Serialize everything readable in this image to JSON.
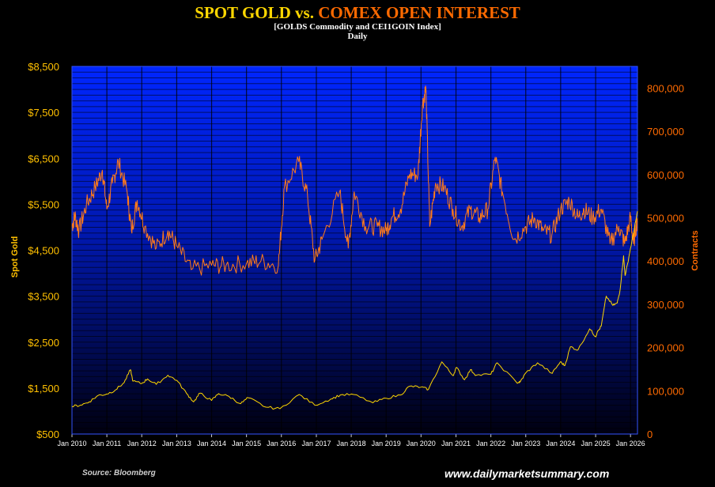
{
  "colors": {
    "background": "#000000",
    "plot_top": "#0026FF",
    "plot_bottom": "#000010",
    "gold_series": "#FFD700",
    "open_interest_series": "#FF7A1A",
    "left_axis_text": "#FFC000",
    "right_axis_text": "#FF6A00"
  },
  "header": {
    "title_part1": "SPOT GOLD",
    "title_vs": "vs.",
    "title_part2": "COMEX OPEN INTEREST",
    "subtitle": "[GOLDS Commodity  and CEI1GOIN Index]",
    "frequency": "Daily"
  },
  "footer": {
    "source": "Source: Bloomberg",
    "website": "www.dailymarketsummary.com"
  },
  "chart_data": {
    "type": "line",
    "grid": true,
    "x_axis": {
      "type": "date",
      "tick_labels": [
        "Jan 2010",
        "Jan 2011",
        "Jan 2012",
        "Jan 2013",
        "Jan 2014",
        "Jan 2015",
        "Jan 2016",
        "Jan 2017",
        "Jan 2018",
        "Jan 2019",
        "Jan 2020",
        "Jan 2021",
        "Jan 2022",
        "Jan 2023",
        "Jan 2024",
        "Jan 2025",
        "Jan 2026"
      ],
      "range": [
        "2010-01-01",
        "2026-03-15"
      ]
    },
    "y_left": {
      "label": "Spot Gold",
      "range": [
        500,
        8500
      ],
      "tick_labels": [
        "$500",
        "$1,500",
        "$2,500",
        "$3,500",
        "$4,500",
        "$5,500",
        "$6,500",
        "$7,500",
        "$8,500"
      ]
    },
    "y_right": {
      "label": "Contracts",
      "range": [
        0,
        850000
      ],
      "tick_labels": [
        "0",
        "100,000",
        "200,000",
        "300,000",
        "400,000",
        "500,000",
        "600,000",
        "700,000",
        "800,000"
      ]
    },
    "series": [
      {
        "name": "Spot Gold",
        "axis": "left",
        "points": [
          [
            "2010-01-01",
            1100
          ],
          [
            "2010-04-01",
            1130
          ],
          [
            "2010-07-01",
            1200
          ],
          [
            "2010-10-01",
            1340
          ],
          [
            "2011-01-01",
            1370
          ],
          [
            "2011-04-01",
            1460
          ],
          [
            "2011-07-01",
            1620
          ],
          [
            "2011-09-05",
            1900
          ],
          [
            "2011-10-01",
            1650
          ],
          [
            "2012-01-01",
            1600
          ],
          [
            "2012-03-01",
            1700
          ],
          [
            "2012-06-01",
            1580
          ],
          [
            "2012-10-01",
            1780
          ],
          [
            "2013-01-01",
            1670
          ],
          [
            "2013-04-15",
            1380
          ],
          [
            "2013-06-28",
            1200
          ],
          [
            "2013-09-01",
            1390
          ],
          [
            "2014-01-01",
            1230
          ],
          [
            "2014-03-15",
            1380
          ],
          [
            "2014-07-01",
            1320
          ],
          [
            "2014-11-01",
            1160
          ],
          [
            "2015-01-20",
            1290
          ],
          [
            "2015-07-24",
            1085
          ],
          [
            "2015-12-17",
            1050
          ],
          [
            "2016-07-06",
            1360
          ],
          [
            "2016-12-15",
            1130
          ],
          [
            "2017-06-01",
            1260
          ],
          [
            "2017-09-08",
            1350
          ],
          [
            "2018-01-25",
            1360
          ],
          [
            "2018-08-16",
            1180
          ],
          [
            "2019-01-01",
            1280
          ],
          [
            "2019-06-01",
            1350
          ],
          [
            "2019-09-01",
            1540
          ],
          [
            "2020-01-01",
            1520
          ],
          [
            "2020-03-19",
            1470
          ],
          [
            "2020-08-06",
            2070
          ],
          [
            "2020-11-30",
            1770
          ],
          [
            "2021-01-06",
            1950
          ],
          [
            "2021-03-31",
            1680
          ],
          [
            "2021-06-01",
            1900
          ],
          [
            "2021-08-01",
            1780
          ],
          [
            "2022-01-01",
            1800
          ],
          [
            "2022-03-08",
            2050
          ],
          [
            "2022-09-28",
            1620
          ],
          [
            "2022-11-03",
            1630
          ],
          [
            "2023-01-01",
            1830
          ],
          [
            "2023-05-04",
            2050
          ],
          [
            "2023-10-05",
            1820
          ],
          [
            "2023-12-28",
            2070
          ],
          [
            "2024-02-14",
            1990
          ],
          [
            "2024-04-12",
            2400
          ],
          [
            "2024-07-01",
            2330
          ],
          [
            "2024-10-30",
            2790
          ],
          [
            "2024-12-31",
            2620
          ],
          [
            "2025-01-15",
            2700
          ],
          [
            "2025-03-01",
            2850
          ],
          [
            "2025-04-22",
            3500
          ],
          [
            "2025-07-01",
            3300
          ],
          [
            "2025-08-15",
            3350
          ],
          [
            "2025-09-15",
            3650
          ],
          [
            "2025-10-20",
            4380
          ],
          [
            "2025-11-05",
            3950
          ],
          [
            "2025-12-01",
            4200
          ],
          [
            "2026-01-15",
            4700
          ],
          [
            "2026-02-05",
            4900
          ],
          [
            "2026-03-15",
            5350
          ]
        ]
      },
      {
        "name": "COMEX Open Interest",
        "axis": "right",
        "points": [
          [
            "2010-01-01",
            480000
          ],
          [
            "2010-02-01",
            505000
          ],
          [
            "2010-03-15",
            470000
          ],
          [
            "2010-06-01",
            530000
          ],
          [
            "2010-09-01",
            570000
          ],
          [
            "2010-11-15",
            610000
          ],
          [
            "2011-01-01",
            520000
          ],
          [
            "2011-03-01",
            580000
          ],
          [
            "2011-05-01",
            630000
          ],
          [
            "2011-08-01",
            560000
          ],
          [
            "2011-09-15",
            470000
          ],
          [
            "2011-11-15",
            540000
          ],
          [
            "2012-02-01",
            480000
          ],
          [
            "2012-06-01",
            430000
          ],
          [
            "2012-10-01",
            470000
          ],
          [
            "2013-01-01",
            435000
          ],
          [
            "2013-06-01",
            380000
          ],
          [
            "2014-01-01",
            390000
          ],
          [
            "2014-06-01",
            390000
          ],
          [
            "2015-01-01",
            395000
          ],
          [
            "2015-06-01",
            400000
          ],
          [
            "2015-12-01",
            390000
          ],
          [
            "2016-02-01",
            570000
          ],
          [
            "2016-07-01",
            630000
          ],
          [
            "2016-10-01",
            550000
          ],
          [
            "2016-12-15",
            400000
          ],
          [
            "2017-03-01",
            450000
          ],
          [
            "2017-09-01",
            560000
          ],
          [
            "2017-12-01",
            430000
          ],
          [
            "2018-02-01",
            560000
          ],
          [
            "2018-06-01",
            480000
          ],
          [
            "2018-10-01",
            480000
          ],
          [
            "2019-01-01",
            470000
          ],
          [
            "2019-03-01",
            500000
          ],
          [
            "2019-06-01",
            520000
          ],
          [
            "2019-09-01",
            600000
          ],
          [
            "2019-12-01",
            600000
          ],
          [
            "2020-01-15",
            760000
          ],
          [
            "2020-02-21",
            800000
          ],
          [
            "2020-04-01",
            480000
          ],
          [
            "2020-06-01",
            580000
          ],
          [
            "2020-09-01",
            570000
          ],
          [
            "2020-12-01",
            520000
          ],
          [
            "2021-03-01",
            480000
          ],
          [
            "2021-06-01",
            520000
          ],
          [
            "2021-09-01",
            500000
          ],
          [
            "2021-12-01",
            520000
          ],
          [
            "2022-02-15",
            640000
          ],
          [
            "2022-05-01",
            560000
          ],
          [
            "2022-09-01",
            450000
          ],
          [
            "2023-01-01",
            480000
          ],
          [
            "2023-04-01",
            500000
          ],
          [
            "2023-07-01",
            470000
          ],
          [
            "2023-10-01",
            460000
          ],
          [
            "2024-01-01",
            520000
          ],
          [
            "2024-04-01",
            540000
          ],
          [
            "2024-07-01",
            500000
          ],
          [
            "2024-09-01",
            520000
          ],
          [
            "2024-12-01",
            500000
          ],
          [
            "2025-03-01",
            520000
          ],
          [
            "2025-06-01",
            440000
          ],
          [
            "2025-09-01",
            480000
          ],
          [
            "2025-11-01",
            440000
          ],
          [
            "2026-01-01",
            500000
          ],
          [
            "2026-02-01",
            440000
          ],
          [
            "2026-03-15",
            500000
          ]
        ]
      }
    ]
  }
}
